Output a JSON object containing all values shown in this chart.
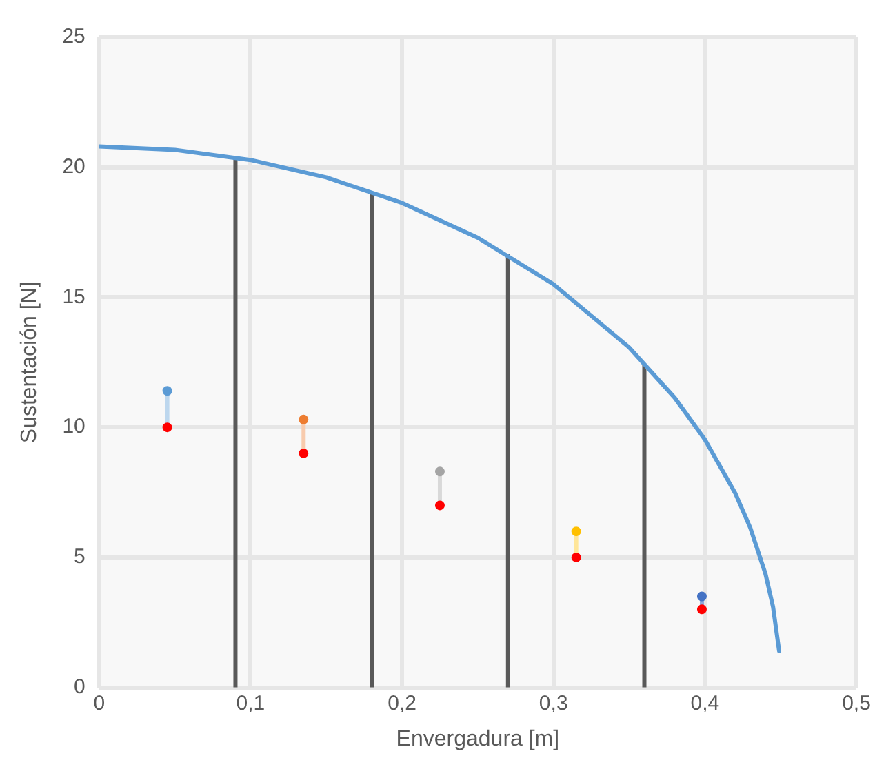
{
  "chart_data": {
    "type": "line",
    "xlabel": "Envergadura [m]",
    "ylabel": "Sustentación [N]",
    "xlim": [
      0,
      0.5
    ],
    "xticks": [
      {
        "value": 0,
        "label": "0"
      },
      {
        "value": 0.1,
        "label": "0,1"
      },
      {
        "value": 0.2,
        "label": "0,2"
      },
      {
        "value": 0.3,
        "label": "0,3"
      },
      {
        "value": 0.4,
        "label": "0,4"
      },
      {
        "value": 0.5,
        "label": "0,5"
      }
    ],
    "ylim": [
      0,
      25
    ],
    "yticks": [
      0,
      5,
      10,
      15,
      20,
      25
    ],
    "grid": true,
    "legend": false,
    "series": [
      {
        "color": "#5b9bd5",
        "marker": "none",
        "x": [
          0,
          0.05,
          0.1,
          0.15,
          0.2,
          0.25,
          0.3,
          0.35,
          0.38,
          0.4,
          0.42,
          0.43,
          0.44,
          0.445,
          0.449
        ],
        "values": [
          20.8,
          20.67,
          20.28,
          19.61,
          18.63,
          17.29,
          15.5,
          13.07,
          11.14,
          9.53,
          7.47,
          6.13,
          4.36,
          3.09,
          1.4
        ]
      },
      {
        "type": "line",
        "color": "#595959",
        "marker": "none",
        "x": [
          0.09,
          0.09
        ],
        "values": [
          0,
          20.3
        ]
      },
      {
        "type": "line",
        "color": "#595959",
        "marker": "none",
        "x": [
          0.18,
          0.18
        ],
        "values": [
          0,
          19.0
        ]
      },
      {
        "type": "line",
        "color": "#595959",
        "marker": "none",
        "x": [
          0.27,
          0.27
        ],
        "values": [
          0,
          16.6
        ]
      },
      {
        "type": "line",
        "color": "#595959",
        "marker": "none",
        "x": [
          0.36,
          0.36
        ],
        "values": [
          0,
          12.4
        ]
      },
      {
        "type": "line",
        "color": "#bdd7ee",
        "marker": "circle",
        "x": [
          0.045,
          0.045
        ],
        "values": [
          10,
          11.4
        ],
        "colors": [
          "#ff0000",
          "#5b9bd5"
        ]
      },
      {
        "type": "line",
        "color": "#f8cbad",
        "marker": "circle",
        "x": [
          0.135,
          0.135
        ],
        "values": [
          9,
          10.3
        ],
        "colors": [
          "#ff0000",
          "#ed7d31"
        ]
      },
      {
        "type": "line",
        "color": "#d9d9d9",
        "marker": "circle",
        "x": [
          0.225,
          0.225
        ],
        "values": [
          7,
          8.3
        ],
        "colors": [
          "#ff0000",
          "#a5a5a5"
        ]
      },
      {
        "type": "line",
        "color": "#ffe699",
        "marker": "circle",
        "x": [
          0.315,
          0.315
        ],
        "values": [
          5,
          6.0
        ],
        "colors": [
          "#ff0000",
          "#ffc000"
        ]
      },
      {
        "type": "line",
        "color": "#8faadc",
        "marker": "circle",
        "x": [
          0.398,
          0.398
        ],
        "values": [
          3,
          3.5
        ],
        "colors": [
          "#ff0000",
          "#4472c4"
        ]
      }
    ]
  }
}
